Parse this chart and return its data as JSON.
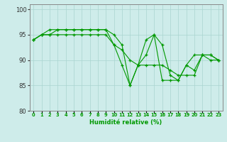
{
  "xlabel": "Humidité relative (%)",
  "xlim": [
    -0.5,
    23.5
  ],
  "ylim": [
    80,
    101
  ],
  "yticks": [
    80,
    85,
    90,
    95,
    100
  ],
  "xtick_labels": [
    "0",
    "1",
    "2",
    "3",
    "4",
    "5",
    "6",
    "7",
    "8",
    "9",
    "10",
    "11",
    "12",
    "13",
    "14",
    "15",
    "16",
    "17",
    "18",
    "19",
    "20",
    "21",
    "22",
    "23"
  ],
  "background_color": "#ceecea",
  "grid_color": "#aad4d0",
  "line_color": "#009900",
  "lines": [
    [
      94,
      95,
      96,
      96,
      96,
      96,
      96,
      96,
      96,
      96,
      95,
      93,
      85,
      89,
      94,
      95,
      93,
      87,
      86,
      89,
      91,
      91,
      90,
      90
    ],
    [
      94,
      95,
      95,
      96,
      96,
      96,
      96,
      96,
      96,
      96,
      93,
      89,
      85,
      89,
      91,
      95,
      86,
      86,
      86,
      89,
      88,
      91,
      91,
      90
    ],
    [
      94,
      95,
      95,
      95,
      95,
      95,
      95,
      95,
      95,
      95,
      93,
      92,
      90,
      89,
      89,
      89,
      89,
      88,
      87,
      87,
      87,
      91,
      91,
      90
    ]
  ],
  "figsize": [
    3.2,
    2.0
  ],
  "dpi": 100
}
